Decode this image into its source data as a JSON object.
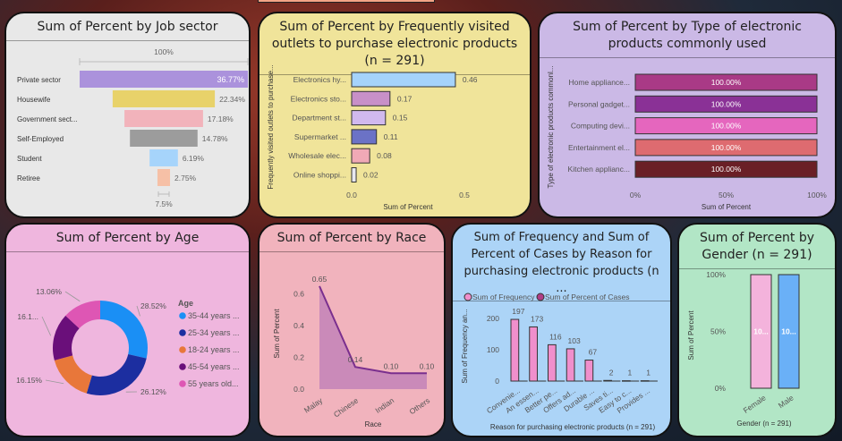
{
  "colors": {
    "panel_job": "#e8e8e8",
    "panel_outlets": "#f0e49a",
    "panel_types": "#cbb9e6",
    "panel_age": "#efb6de",
    "panel_race": "#f1b3bd",
    "panel_reason": "#acd4f7",
    "panel_gender": "#b2e6c6"
  },
  "chart_data": [
    {
      "id": "job",
      "type": "funnel",
      "title": "Sum of Percent by Job sector",
      "top_label": "100%",
      "bottom_label": "7.5%",
      "categories": [
        "Private sector",
        "Housewife",
        "Government sect...",
        "Self-Employed",
        "Student",
        "Retiree"
      ],
      "values": [
        36.77,
        22.34,
        17.18,
        14.78,
        6.19,
        2.75
      ],
      "value_labels": [
        "36.77%",
        "22.34%",
        "17.18%",
        "14.78%",
        "6.19%",
        "2.75%"
      ],
      "colors": [
        "#ab92dc",
        "#e8d26a",
        "#f2b3bb",
        "#9c9c9c",
        "#a6d4fb",
        "#f6c0a6"
      ]
    },
    {
      "id": "outlets",
      "type": "bar",
      "orientation": "horizontal",
      "title": "Sum of Percent by Frequently visited outlets to purchase electronic products (n = 291)",
      "ylabel": "Frequently visited outlets to purchase...",
      "xlabel": "Sum of Percent",
      "categories": [
        "Electronics hy...",
        "Electronics sto...",
        "Department st...",
        "Supermarket ...",
        "Wholesale elec...",
        "Online shoppi..."
      ],
      "values": [
        0.46,
        0.17,
        0.15,
        0.11,
        0.08,
        0.02
      ],
      "value_labels": [
        "0.46",
        "0.17",
        "0.15",
        "0.11",
        "0.08",
        "0.02"
      ],
      "colors": [
        "#a5d3fb",
        "#c890c8",
        "#d1b9ee",
        "#6b72c6",
        "#f0a9b6",
        "#e8e8f0"
      ],
      "xticks": [
        "0.0",
        "0.5"
      ],
      "xlim": [
        0,
        0.5
      ]
    },
    {
      "id": "types",
      "type": "bar",
      "orientation": "horizontal",
      "title": "Sum of Percent by Type of electronic products commonly used",
      "ylabel": "Type of electronic products commonl...",
      "xlabel": "Sum of Percent",
      "categories": [
        "Home appliance...",
        "Personal gadget...",
        "Computing devi...",
        "Entertainment el...",
        "Kitchen applianc..."
      ],
      "values": [
        100,
        100,
        100,
        100,
        100
      ],
      "value_labels": [
        "100.00%",
        "100.00%",
        "100.00%",
        "100.00%",
        "100.00%"
      ],
      "colors": [
        "#a93a86",
        "#8a3196",
        "#e566be",
        "#de6b70",
        "#6a1f26"
      ],
      "xticks": [
        "0%",
        "50%",
        "100%"
      ],
      "xlim": [
        0,
        100
      ]
    },
    {
      "id": "age",
      "type": "pie",
      "donut": true,
      "title": "Sum of Percent by Age",
      "legend_title": "Age",
      "legend_position": "right",
      "categories": [
        "35-44 years ...",
        "25-34 years ...",
        "18-24 years ...",
        "45-54 years ...",
        "55 years old..."
      ],
      "values": [
        28.52,
        26.12,
        16.15,
        16.15,
        13.06
      ],
      "value_labels": [
        "28.52%",
        "26.12%",
        "16.15%",
        "16.1...",
        "13.06%"
      ],
      "colors": [
        "#1a8ff5",
        "#1c2ea0",
        "#e8773a",
        "#6a0f7a",
        "#de56b4"
      ]
    },
    {
      "id": "race",
      "type": "area",
      "title": "Sum of Percent by Race",
      "xlabel": "Race",
      "ylabel": "Sum of Percent",
      "categories": [
        "Malay",
        "Chinese",
        "Indian",
        "Others"
      ],
      "values": [
        0.65,
        0.14,
        0.1,
        0.1
      ],
      "value_labels": [
        "0.65",
        "0.14",
        "0.10",
        "0.10"
      ],
      "yticks": [
        "0.0",
        "0.2",
        "0.4",
        "0.6"
      ],
      "ylim": [
        0,
        0.7
      ],
      "line_color": "#7a2f8e",
      "fill_color": "#c382b8"
    },
    {
      "id": "reason",
      "type": "bar",
      "title": "Sum of Frequency and Sum of Percent of Cases by Reason for purchasing electronic products (n ...",
      "xlabel": "Reason for purchasing electronic products (n = 291)",
      "ylabel": "Sum of Frequency an...",
      "legend_position": "top-left",
      "series": [
        {
          "name": "Sum of Frequency",
          "color": "#f08fcc",
          "values": [
            197,
            173,
            116,
            103,
            67,
            2,
            1,
            1
          ]
        },
        {
          "name": "Sum of Percent of Cases",
          "color": "#b03d86",
          "values": [
            0.68,
            0.59,
            0.4,
            0.35,
            0.23,
            0.01,
            0.0,
            0.0
          ]
        }
      ],
      "value_labels": [
        "197",
        "173",
        "116",
        "103",
        "67",
        "2",
        "1",
        "1"
      ],
      "categories": [
        "Convenie...",
        "An essen...",
        "Better pe...",
        "Offers ad...",
        "Durable ...",
        "Saves ti...",
        "Easy to c...",
        "Provides ..."
      ],
      "yticks": [
        "0",
        "100",
        "200"
      ],
      "ylim": [
        0,
        220
      ]
    },
    {
      "id": "gender",
      "type": "bar",
      "title": "Sum of Percent by Gender (n = 291)",
      "xlabel": "Gender (n = 291)",
      "ylabel": "Sum of Percent",
      "categories": [
        "Female",
        "Male"
      ],
      "values": [
        100,
        100
      ],
      "value_labels": [
        "10...",
        "10..."
      ],
      "colors": [
        "#f4b3dc",
        "#6ab0f7"
      ],
      "yticks": [
        "0%",
        "50%",
        "100%"
      ],
      "ylim": [
        0,
        100
      ]
    }
  ]
}
